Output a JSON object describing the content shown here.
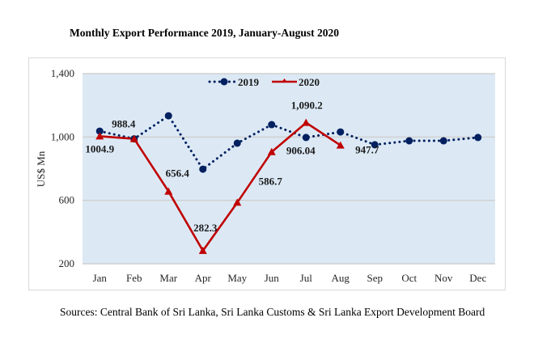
{
  "chart_data": {
    "type": "line",
    "title": "Monthly Export Performance 2019, January-August 2020",
    "xlabel": "",
    "ylabel": "US$ Mn",
    "categories": [
      "Jan",
      "Feb",
      "Mar",
      "Apr",
      "May",
      "Jun",
      "Jul",
      "Aug",
      "Sep",
      "Oct",
      "Nov",
      "Dec"
    ],
    "ylim": [
      200,
      1400
    ],
    "yticks": [
      200,
      600,
      1000,
      1400
    ],
    "ytick_labels": [
      "200",
      "600",
      "1,000",
      "1,400"
    ],
    "grid": true,
    "legend_position": "top-center",
    "series": [
      {
        "name": "2019",
        "style": "dotted",
        "marker": "circle",
        "color": "#002060",
        "values": [
          1037,
          988.4,
          1134,
          797,
          961,
          1078,
          997,
          1032,
          951,
          976,
          976,
          997
        ]
      },
      {
        "name": "2020",
        "style": "solid",
        "marker": "triangle",
        "color": "#c00000",
        "values": [
          1004.9,
          988.4,
          656.4,
          282.3,
          586.7,
          906.04,
          1090.2,
          947.7,
          null,
          null,
          null,
          null
        ]
      }
    ],
    "data_labels": [
      {
        "series": "2020",
        "category": "Jan",
        "text": "1004.9"
      },
      {
        "series": "2020",
        "category": "Feb",
        "text": "988.4"
      },
      {
        "series": "2020",
        "category": "Mar",
        "text": "656.4"
      },
      {
        "series": "2020",
        "category": "Apr",
        "text": "282.3"
      },
      {
        "series": "2020",
        "category": "May",
        "text": "586.7"
      },
      {
        "series": "2020",
        "category": "Jun",
        "text": "906.04"
      },
      {
        "series": "2020",
        "category": "Jul",
        "text": "1,090.2"
      },
      {
        "series": "2020",
        "category": "Aug",
        "text": "947.7"
      }
    ],
    "colors": {
      "plot_background": "#dce9f5",
      "gridline": "#d0d0d0"
    }
  },
  "source_note": "Sources: Central Bank of Sri Lanka, Sri Lanka Customs & Sri Lanka Export Development Board"
}
